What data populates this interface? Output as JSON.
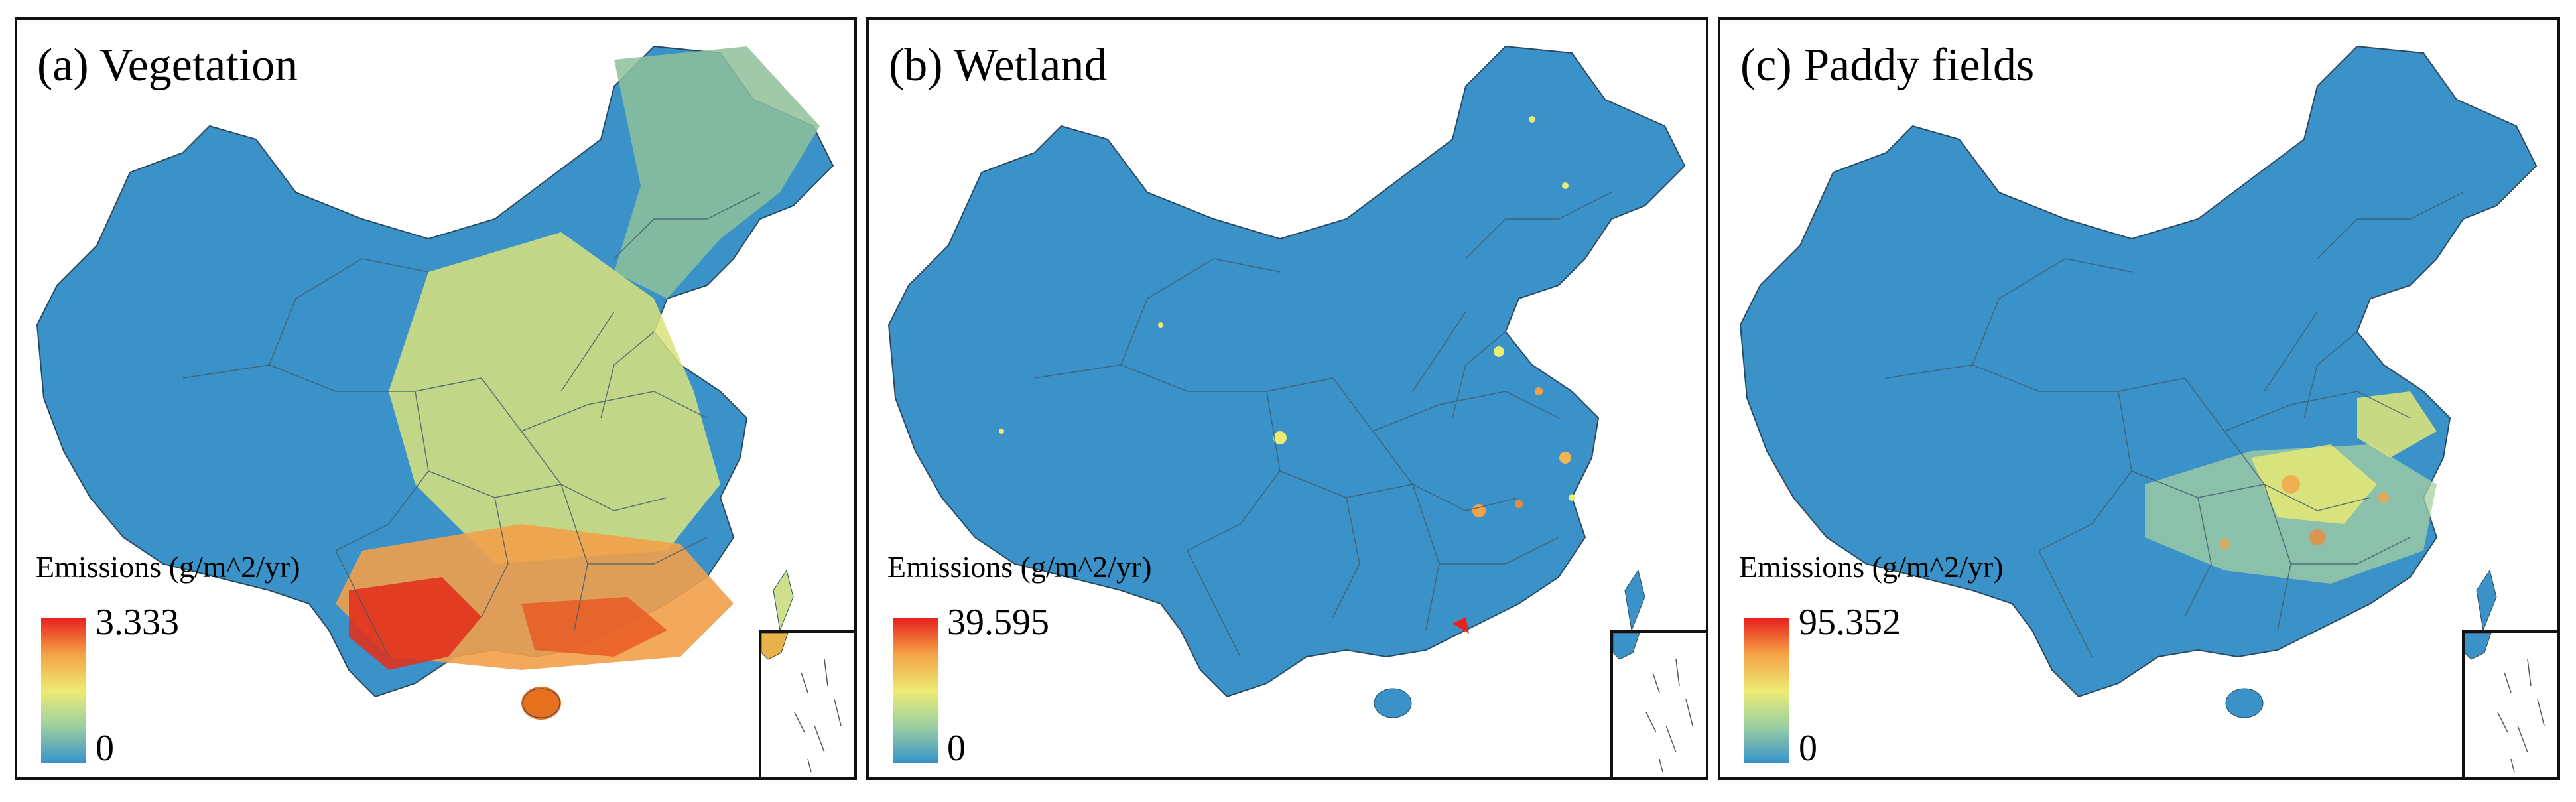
{
  "colors": {
    "base": "#3a92c9",
    "low": "#3793c8",
    "mid_low": "#9ed1a0",
    "mid": "#eceb72",
    "mid_high": "#f5a246",
    "high": "#e8231d",
    "border": "#2a4a60"
  },
  "panels": [
    {
      "id": "a",
      "title": "(a) Vegetation",
      "legend_title": "Emissions (g/m^2/yr)",
      "max": "3.333",
      "min": "0"
    },
    {
      "id": "b",
      "title": "(b) Wetland",
      "legend_title": "Emissions (g/m^2/yr)",
      "max": "39.595",
      "min": "0"
    },
    {
      "id": "c",
      "title": "(c) Paddy fields",
      "legend_title": "Emissions (g/m^2/yr)",
      "max": "95.352",
      "min": "0"
    }
  ]
}
